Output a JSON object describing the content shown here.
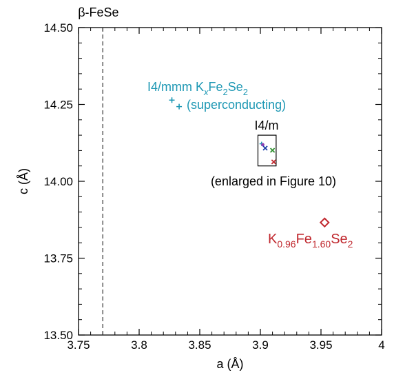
{
  "chart_data": {
    "type": "scatter",
    "xlabel": "a (Å)",
    "ylabel": "c (Å)",
    "xlim": [
      3.75,
      4.0
    ],
    "ylim": [
      13.5,
      14.5
    ],
    "x_ticks": [
      3.75,
      3.8,
      3.85,
      3.9,
      3.95,
      4.0
    ],
    "x_tick_labels": [
      "3.75",
      "3.8",
      "3.85",
      "3.9",
      "3.95",
      "4"
    ],
    "y_ticks": [
      13.5,
      13.75,
      14.0,
      14.25,
      14.5
    ],
    "y_tick_labels": [
      "13.50",
      "13.75",
      "14.00",
      "14.25",
      "14.50"
    ],
    "grid": false,
    "reference_line": {
      "x": 3.77,
      "label": "β-FeSe",
      "style": "dashed"
    },
    "series": [
      {
        "name": "I4/mmm K_xFe_2Se_2 (superconducting)",
        "color": "#1e98b4",
        "marker": "plus",
        "points": [
          [
            3.827,
            14.264
          ],
          [
            3.833,
            14.243
          ]
        ]
      },
      {
        "name": "I4/m",
        "marker": "mixed",
        "points": [
          {
            "x": 3.901,
            "y": 14.122,
            "color": "#1e98b4",
            "marker": "plus"
          },
          {
            "x": 3.902,
            "y": 14.119,
            "color": "#8e3fb4",
            "marker": "circle"
          },
          {
            "x": 3.904,
            "y": 14.108,
            "color": "#1b3fa8",
            "marker": "x"
          },
          {
            "x": 3.91,
            "y": 14.101,
            "color": "#2e8f2e",
            "marker": "x"
          },
          {
            "x": 3.911,
            "y": 14.063,
            "color": "#c0272d",
            "marker": "x"
          }
        ]
      },
      {
        "name": "K_0.96Fe_1.60Se_2",
        "color": "#c0272d",
        "marker": "diamond",
        "points": [
          [
            3.953,
            13.866
          ]
        ]
      }
    ],
    "inset_box": {
      "x": [
        3.898,
        3.913
      ],
      "y": [
        14.05,
        14.15
      ]
    },
    "annotations": {
      "i4mmm_label": {
        "text": "I4/mmm K_xFe_2Se_2",
        "color": "#1e98b4"
      },
      "superconducting_label": {
        "text": "(superconducting)",
        "color": "#1e98b4"
      },
      "i4m_label": {
        "text": "I4/m",
        "color": "#000000"
      },
      "enlarged_label": {
        "text": "(enlarged in Figure 10)",
        "color": "#000000"
      },
      "compound_label": {
        "text": "K_0.96Fe_1.60Se_2",
        "color": "#c0272d"
      }
    }
  }
}
